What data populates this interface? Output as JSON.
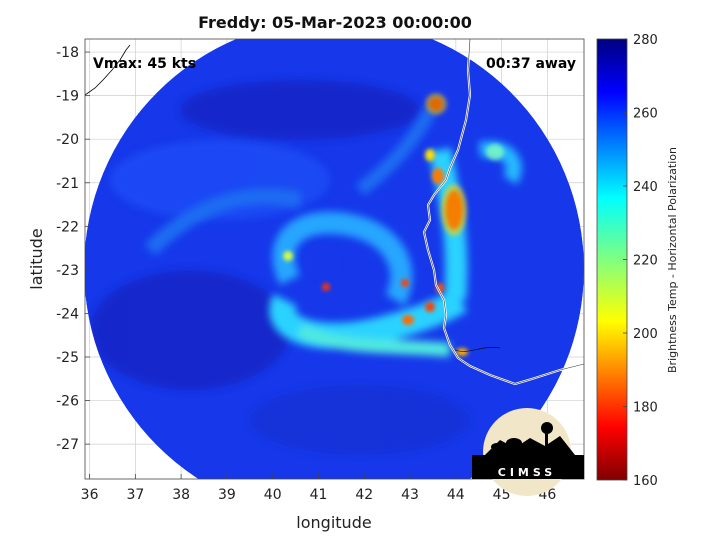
{
  "title": "Freddy: 05-Mar-2023 00:00:00",
  "annotations": {
    "vmax": "Vmax: 45 kts",
    "time_away": "00:37 away"
  },
  "logo_text": "CIMSS",
  "colors": {
    "ocean": "#1a3cf0",
    "coast": "#ffffff",
    "grid": "#cfcfcf"
  },
  "chart_data": {
    "type": "heatmap",
    "title": "Freddy: 05-Mar-2023 00:00:00",
    "xlabel": "longitude",
    "ylabel": "latitude",
    "xlim": [
      35.9,
      46.8
    ],
    "ylim": [
      -27.8,
      -17.7
    ],
    "x_ticks": [
      36,
      37,
      38,
      39,
      40,
      41,
      42,
      43,
      44,
      45,
      46
    ],
    "x_tick_labels": [
      "36",
      "37",
      "38",
      "39",
      "40",
      "41",
      "42",
      "43",
      "44",
      "45",
      "46"
    ],
    "y_ticks": [
      -18,
      -19,
      -20,
      -21,
      -22,
      -23,
      -24,
      -25,
      -26,
      -27
    ],
    "y_tick_labels": [
      "-18",
      "-19",
      "-20",
      "-21",
      "-22",
      "-23",
      "-24",
      "-25",
      "-26",
      "-27"
    ],
    "grid": true,
    "colorbar": {
      "label": "Brightness Temp - Horizontal Polarization",
      "range": [
        160,
        280
      ],
      "ticks": [
        160,
        180,
        200,
        220,
        240,
        260,
        280
      ],
      "tick_labels": [
        "160",
        "180",
        "200",
        "220",
        "240",
        "260",
        "280"
      ],
      "colormap": "jet"
    },
    "swath_center": [
      41.3,
      -22.6
    ],
    "storm_center": [
      41.6,
      -22.9
    ]
  }
}
